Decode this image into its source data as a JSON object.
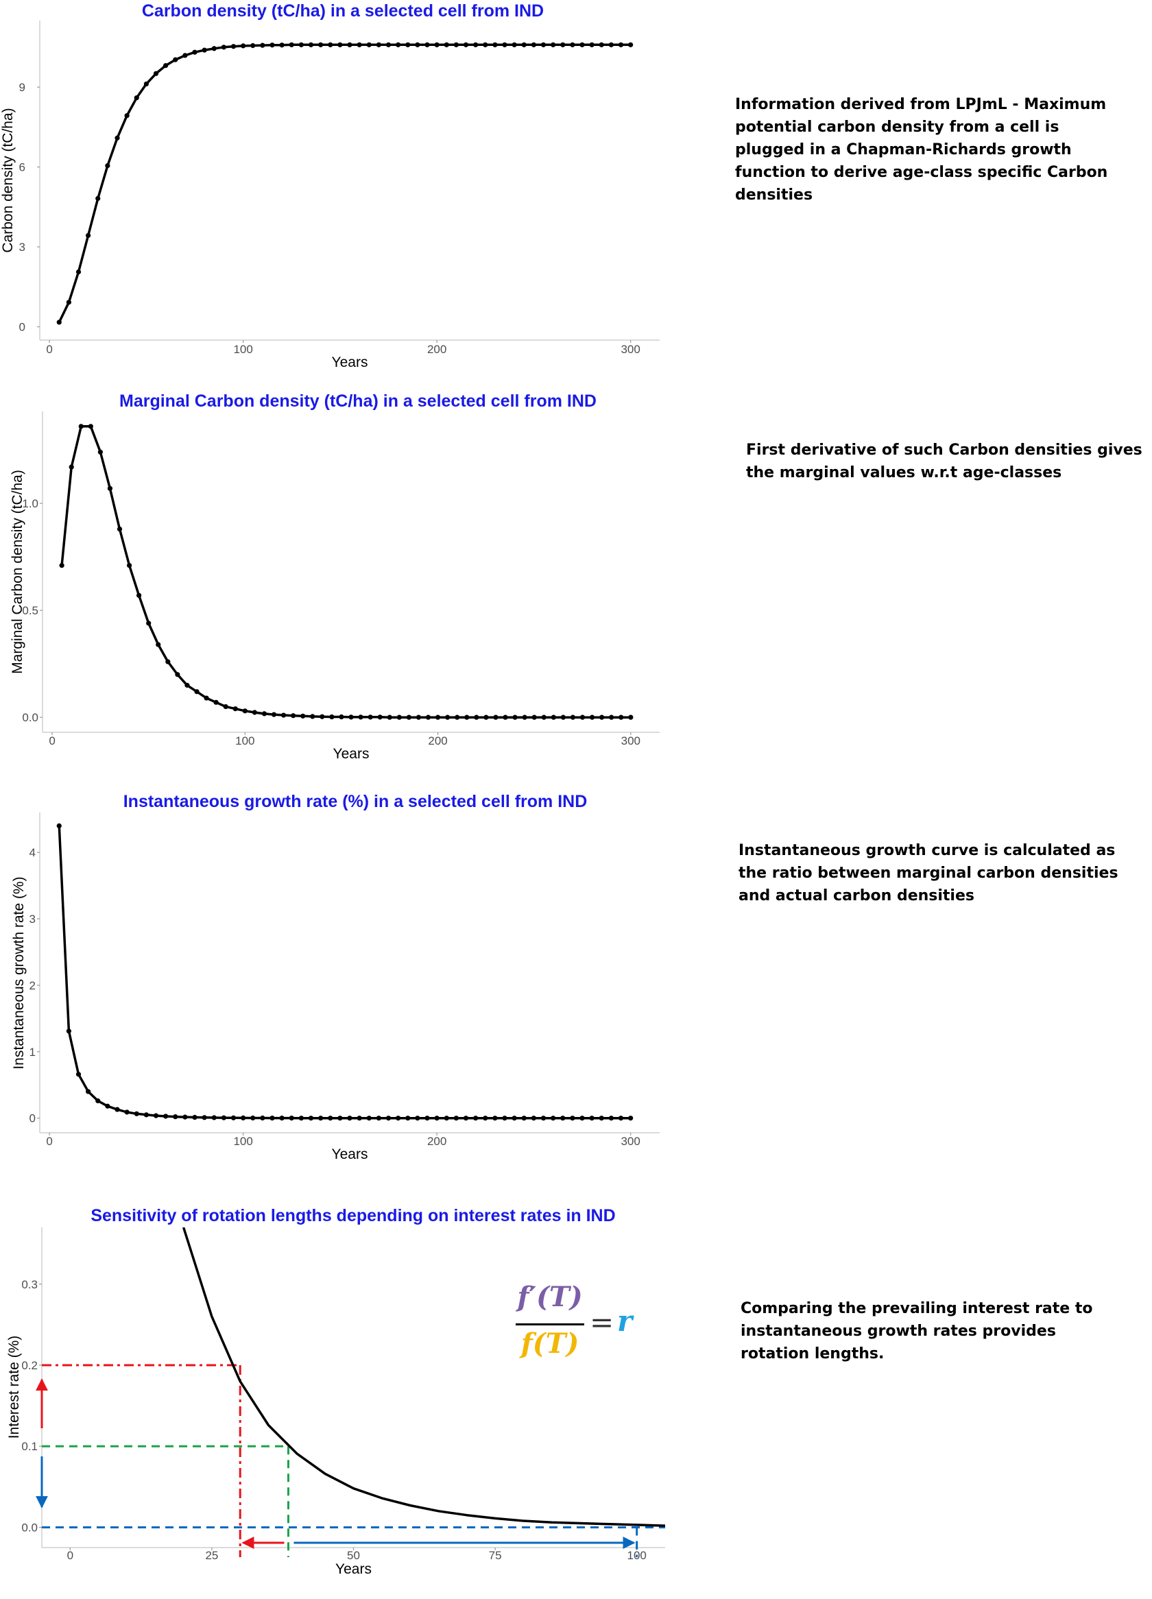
{
  "panels": [
    {
      "note": "Information derived from LPJmL - Maximum potential carbon density from a cell is plugged in a Chapman-Richards growth function to derive age-class specific Carbon densities"
    },
    {
      "note": "First derivative of such Carbon densities gives the marginal values w.r.t age-classes"
    },
    {
      "note": "Instantaneous growth curve is calculated as the ratio between marginal carbon densities and actual carbon densities"
    },
    {
      "note": "Comparing the prevailing interest rate to instantaneous growth rates provides rotation lengths."
    }
  ],
  "formula": {
    "numerator": "f′(T)",
    "denominator": "f(T)",
    "equals": "=",
    "rhs": "r"
  },
  "colors": {
    "title": "#1a1ae6",
    "curve": "#000000",
    "red": "#e8141b",
    "green": "#1aa34a",
    "blue": "#0868c0",
    "numerator": "#7b5ea7",
    "denominator": "#f2b705",
    "rhs": "#1fa2e0"
  },
  "chart_data": [
    {
      "type": "line",
      "title": "Carbon density (tC/ha) in a selected cell from IND",
      "xlabel": "Years",
      "ylabel": "Carbon density (tC/ha)",
      "xlim": [
        -5,
        315
      ],
      "ylim": [
        -0.5,
        11.5
      ],
      "xticks": [
        0,
        100,
        200,
        300
      ],
      "xtick_labels": [
        "0",
        "100",
        "200",
        "300"
      ],
      "yticks": [
        0,
        3,
        6,
        9
      ],
      "ytick_labels": [
        "0",
        "3",
        "6",
        "9"
      ],
      "markers": true,
      "grid": false,
      "x": [
        5,
        10,
        15,
        20,
        25,
        30,
        35,
        40,
        45,
        50,
        55,
        60,
        65,
        70,
        75,
        80,
        85,
        90,
        95,
        100,
        105,
        110,
        115,
        120,
        125,
        130,
        135,
        140,
        145,
        150,
        155,
        160,
        165,
        170,
        175,
        180,
        185,
        190,
        195,
        200,
        205,
        210,
        215,
        220,
        225,
        230,
        235,
        240,
        245,
        250,
        255,
        260,
        265,
        270,
        275,
        280,
        285,
        290,
        295,
        300
      ],
      "y": [
        0.17,
        0.92,
        2.06,
        3.43,
        4.82,
        6.05,
        7.09,
        7.93,
        8.6,
        9.12,
        9.51,
        9.81,
        10.03,
        10.19,
        10.31,
        10.39,
        10.45,
        10.5,
        10.53,
        10.55,
        10.56,
        10.57,
        10.58,
        10.58,
        10.59,
        10.59,
        10.59,
        10.59,
        10.59,
        10.59,
        10.59,
        10.59,
        10.59,
        10.59,
        10.59,
        10.59,
        10.59,
        10.59,
        10.59,
        10.59,
        10.59,
        10.59,
        10.59,
        10.59,
        10.59,
        10.59,
        10.59,
        10.59,
        10.59,
        10.59,
        10.59,
        10.59,
        10.59,
        10.59,
        10.59,
        10.59,
        10.59,
        10.59,
        10.59,
        10.59
      ]
    },
    {
      "type": "line",
      "title": "Marginal Carbon density (tC/ha) in a selected cell from IND",
      "xlabel": "Years",
      "ylabel": "Marginal Carbon density (tC/ha)",
      "xlim": [
        -5,
        315
      ],
      "ylim": [
        -0.07,
        1.43
      ],
      "xticks": [
        0,
        100,
        200,
        300
      ],
      "xtick_labels": [
        "0",
        "100",
        "200",
        "300"
      ],
      "yticks": [
        0,
        0.5,
        1
      ],
      "ytick_labels": [
        "0.0",
        "0.5",
        "1.0"
      ],
      "markers": true,
      "grid": false,
      "x": [
        5,
        10,
        15,
        20,
        25,
        30,
        35,
        40,
        45,
        50,
        55,
        60,
        65,
        70,
        75,
        80,
        85,
        90,
        95,
        100,
        105,
        110,
        115,
        120,
        125,
        130,
        135,
        140,
        145,
        150,
        155,
        160,
        165,
        170,
        175,
        180,
        185,
        190,
        195,
        200,
        205,
        210,
        215,
        220,
        225,
        230,
        235,
        240,
        245,
        250,
        255,
        260,
        265,
        270,
        275,
        280,
        285,
        290,
        295,
        300
      ],
      "y": [
        0.71,
        1.17,
        1.36,
        1.36,
        1.24,
        1.07,
        0.88,
        0.71,
        0.57,
        0.44,
        0.34,
        0.26,
        0.2,
        0.15,
        0.12,
        0.09,
        0.07,
        0.05,
        0.04,
        0.03,
        0.023,
        0.017,
        0.013,
        0.01,
        0.008,
        0.006,
        0.004,
        0.003,
        0.002,
        0.002,
        0.001,
        0.001,
        0.001,
        0.001,
        0,
        0,
        0,
        0,
        0,
        0,
        0,
        0,
        0,
        0,
        0,
        0,
        0,
        0,
        0,
        0,
        0,
        0,
        0,
        0,
        0,
        0,
        0,
        0,
        0,
        0
      ]
    },
    {
      "type": "line",
      "title": "Instantaneous growth rate (%) in a selected cell from IND",
      "xlabel": "Years",
      "ylabel": "Instantaneous growth rate (%)",
      "xlim": [
        -5,
        315
      ],
      "ylim": [
        -0.22,
        4.6
      ],
      "xticks": [
        0,
        100,
        200,
        300
      ],
      "xtick_labels": [
        "0",
        "100",
        "200",
        "300"
      ],
      "yticks": [
        0,
        1,
        2,
        3,
        4
      ],
      "ytick_labels": [
        "0",
        "1",
        "2",
        "3",
        "4"
      ],
      "markers": true,
      "grid": false,
      "x": [
        5,
        10,
        15,
        20,
        25,
        30,
        35,
        40,
        45,
        50,
        55,
        60,
        65,
        70,
        75,
        80,
        85,
        90,
        95,
        100,
        105,
        110,
        115,
        120,
        125,
        130,
        135,
        140,
        145,
        150,
        155,
        160,
        165,
        170,
        175,
        180,
        185,
        190,
        195,
        200,
        205,
        210,
        215,
        220,
        225,
        230,
        235,
        240,
        245,
        250,
        255,
        260,
        265,
        270,
        275,
        280,
        285,
        290,
        295,
        300
      ],
      "y": [
        4.4,
        1.31,
        0.66,
        0.4,
        0.26,
        0.18,
        0.13,
        0.09,
        0.066,
        0.05,
        0.037,
        0.028,
        0.021,
        0.016,
        0.012,
        0.009,
        0.007,
        0.005,
        0.004,
        0.003,
        0.002,
        0.002,
        0.001,
        0.001,
        0.001,
        0,
        0,
        0,
        0,
        0,
        0,
        0,
        0,
        0,
        0,
        0,
        0,
        0,
        0,
        0,
        0,
        0,
        0,
        0,
        0,
        0,
        0,
        0,
        0,
        0,
        0,
        0,
        0,
        0,
        0,
        0,
        0,
        0,
        0,
        0
      ]
    },
    {
      "type": "line",
      "title": "Sensitivity of rotation lengths depending on interest rates in IND",
      "xlabel": "Years",
      "ylabel": "Interest rate (%)",
      "xlim": [
        -5,
        105
      ],
      "ylim": [
        -0.025,
        0.37
      ],
      "xticks": [
        0,
        25,
        50,
        75,
        100
      ],
      "xtick_labels": [
        "0",
        "25",
        "50",
        "75",
        "100"
      ],
      "yticks": [
        0,
        0.1,
        0.2,
        0.3
      ],
      "ytick_labels": [
        "0.0",
        "0.1",
        "0.2",
        "0.3"
      ],
      "markers": false,
      "grid": false,
      "x": [
        20,
        25,
        30,
        35,
        40,
        45,
        50,
        55,
        60,
        65,
        70,
        75,
        80,
        85,
        90,
        95,
        100,
        105
      ],
      "y": [
        0.37,
        0.26,
        0.18,
        0.126,
        0.091,
        0.066,
        0.048,
        0.036,
        0.027,
        0.02,
        0.015,
        0.011,
        0.008,
        0.006,
        0.005,
        0.004,
        0.003,
        0.002
      ],
      "annotations": [
        {
          "kind": "dash-dot",
          "color": "red",
          "interest_rate": 0.2,
          "rotation_years": 30
        },
        {
          "kind": "dashed",
          "color": "green",
          "interest_rate": 0.1,
          "rotation_years": 38.5
        },
        {
          "kind": "dashed",
          "color": "blue",
          "interest_rate": 0.0,
          "rotation_years": 100
        }
      ]
    }
  ]
}
